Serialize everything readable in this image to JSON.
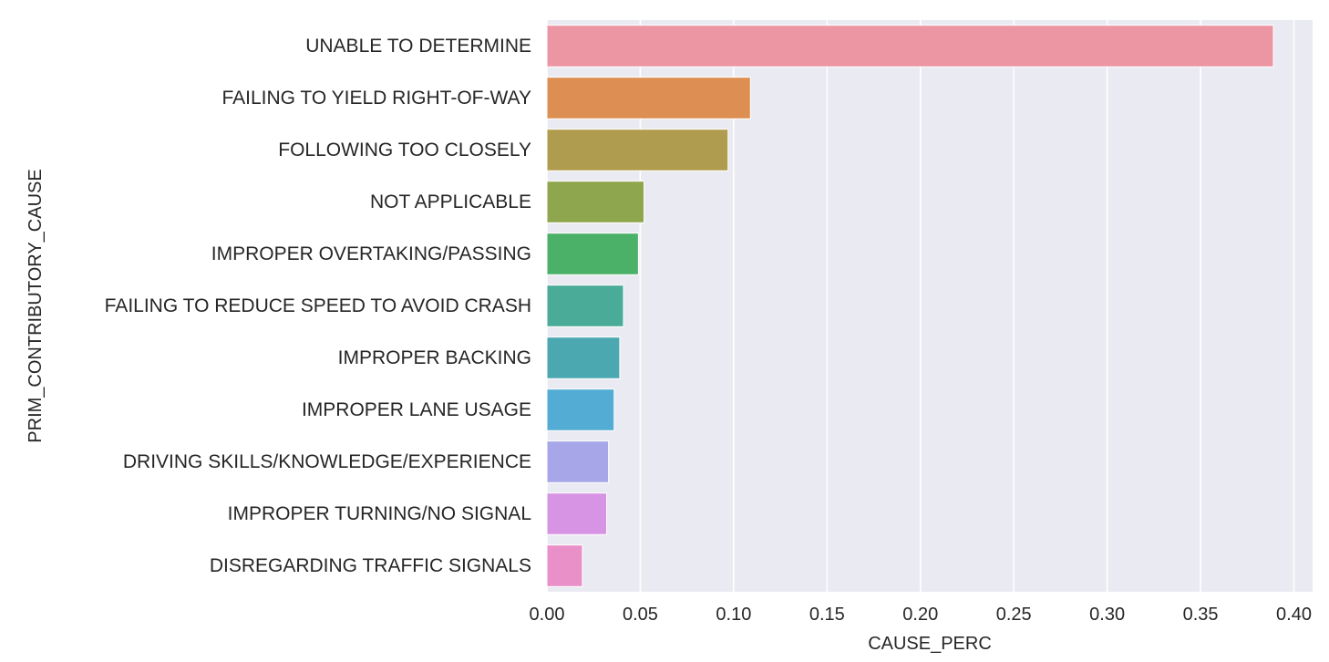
{
  "chart_data": {
    "type": "bar",
    "orientation": "horizontal",
    "title": "",
    "xlabel": "CAUSE_PERC",
    "ylabel": "PRIM_CONTRIBUTORY_CAUSE",
    "xlim": [
      0,
      0.41
    ],
    "xticks": [
      0.0,
      0.05,
      0.1,
      0.15,
      0.2,
      0.25,
      0.3,
      0.35,
      0.4
    ],
    "xtick_labels": [
      "0.00",
      "0.05",
      "0.10",
      "0.15",
      "0.20",
      "0.25",
      "0.30",
      "0.35",
      "0.40"
    ],
    "grid": true,
    "legend": "none",
    "background_color": "#eaeaf2",
    "grid_color": "#ffffff",
    "categories": [
      "UNABLE TO DETERMINE",
      "FAILING TO YIELD RIGHT-OF-WAY",
      "FOLLOWING TOO CLOSELY",
      "NOT APPLICABLE",
      "IMPROPER OVERTAKING/PASSING",
      "FAILING TO REDUCE SPEED TO AVOID CRASH",
      "IMPROPER BACKING",
      "IMPROPER LANE USAGE",
      "DRIVING SKILLS/KNOWLEDGE/EXPERIENCE",
      "IMPROPER TURNING/NO SIGNAL",
      "DISREGARDING TRAFFIC SIGNALS"
    ],
    "values": [
      0.389,
      0.109,
      0.097,
      0.052,
      0.049,
      0.041,
      0.039,
      0.036,
      0.033,
      0.032,
      0.019
    ],
    "colors": [
      "#ec96a3",
      "#dd8f53",
      "#b09c4e",
      "#8ea64e",
      "#4bb168",
      "#4aac98",
      "#4ba8b0",
      "#53acd4",
      "#a7a6e8",
      "#d894e4",
      "#ea90c8"
    ]
  }
}
